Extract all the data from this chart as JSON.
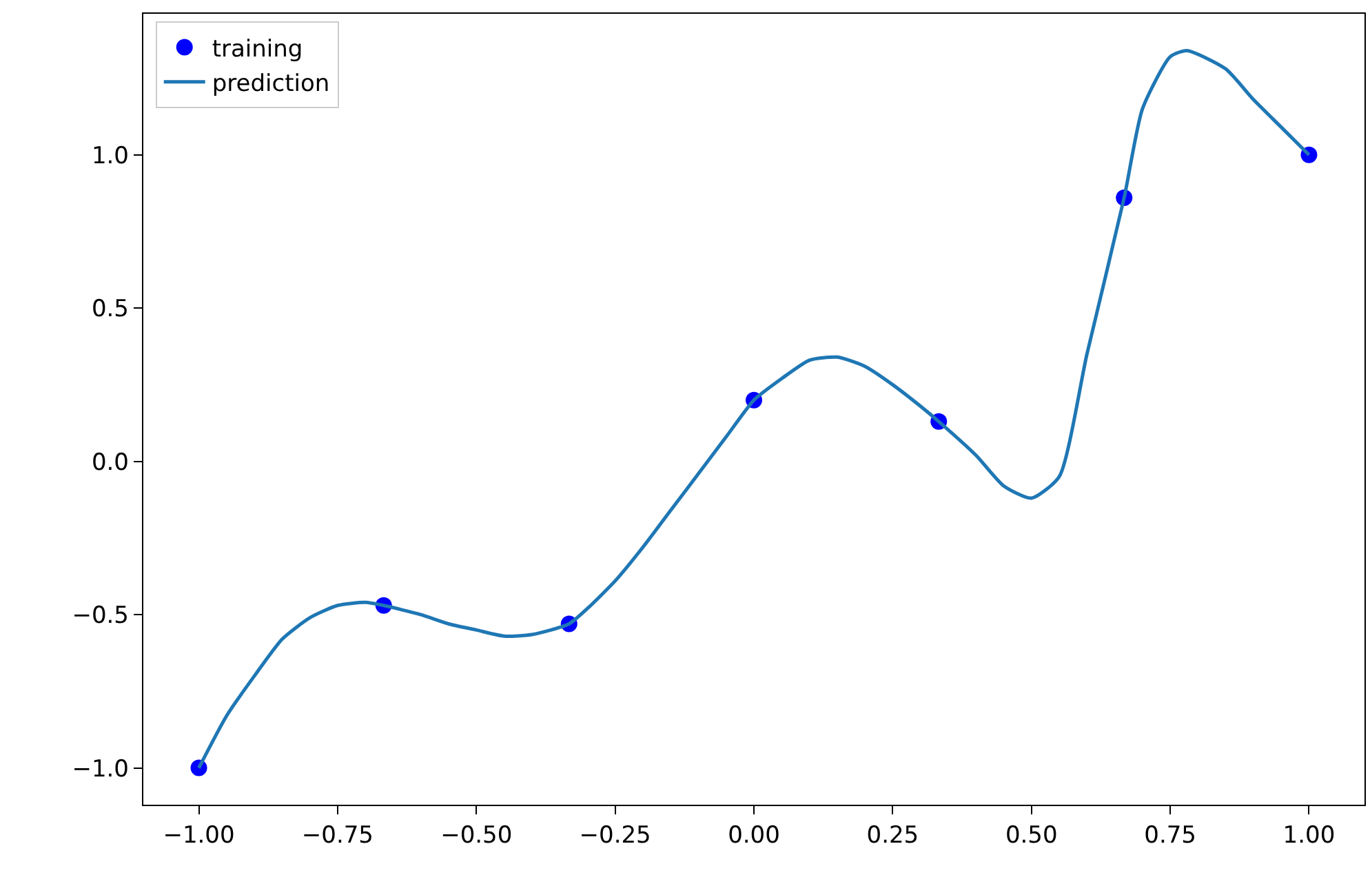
{
  "chart_data": {
    "type": "scatter",
    "series": [
      {
        "name": "training",
        "color": "#0000ff",
        "marker": "circle",
        "x": [
          -1.0,
          -0.667,
          -0.333,
          0.0,
          0.333,
          0.667,
          1.0
        ],
        "values": [
          -1.0,
          -0.47,
          -0.53,
          0.2,
          0.13,
          0.86,
          1.0
        ]
      },
      {
        "name": "prediction",
        "type": "line",
        "color": "#1f77b4",
        "marker": "none",
        "line_style": "solid",
        "x": [
          -1.0,
          -0.95,
          -0.9,
          -0.85,
          -0.8,
          -0.75,
          -0.7,
          -0.667,
          -0.6,
          -0.55,
          -0.5,
          -0.45,
          -0.4,
          -0.333,
          -0.3,
          -0.25,
          -0.2,
          -0.15,
          -0.1,
          -0.05,
          0.0,
          0.05,
          0.1,
          0.15,
          0.2,
          0.25,
          0.3,
          0.333,
          0.4,
          0.45,
          0.5,
          0.55,
          0.6,
          0.667,
          0.7,
          0.75,
          0.78,
          0.85,
          0.9,
          0.95,
          1.0
        ],
        "values": [
          -1.0,
          -0.83,
          -0.7,
          -0.58,
          -0.51,
          -0.47,
          -0.46,
          -0.47,
          -0.5,
          -0.53,
          -0.55,
          -0.57,
          -0.565,
          -0.53,
          -0.48,
          -0.39,
          -0.28,
          -0.16,
          -0.04,
          0.08,
          0.2,
          0.27,
          0.33,
          0.34,
          0.31,
          0.25,
          0.18,
          0.13,
          0.02,
          -0.08,
          -0.12,
          -0.05,
          0.35,
          0.86,
          1.15,
          1.32,
          1.34,
          1.28,
          1.18,
          1.09,
          1.0
        ]
      }
    ],
    "xlim": [
      -1.1,
      1.1
    ],
    "ylim": [
      -1.12,
      1.46
    ],
    "xticks": [
      {
        "value": -1.0,
        "label": "−1.00"
      },
      {
        "value": -0.75,
        "label": "−0.75"
      },
      {
        "value": -0.5,
        "label": "−0.50"
      },
      {
        "value": -0.25,
        "label": "−0.25"
      },
      {
        "value": 0.0,
        "label": "0.00"
      },
      {
        "value": 0.25,
        "label": "0.25"
      },
      {
        "value": 0.5,
        "label": "0.50"
      },
      {
        "value": 0.75,
        "label": "0.75"
      },
      {
        "value": 1.0,
        "label": "1.00"
      }
    ],
    "yticks": [
      {
        "value": -1.0,
        "label": "−1.0"
      },
      {
        "value": -0.5,
        "label": "−0.5"
      },
      {
        "value": 0.0,
        "label": "0.0"
      },
      {
        "value": 0.5,
        "label": "0.5"
      },
      {
        "value": 1.0,
        "label": "1.0"
      }
    ],
    "legend": "top left"
  }
}
